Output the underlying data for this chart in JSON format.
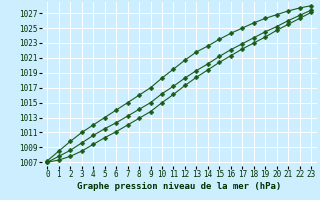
{
  "title": "Graphe pression niveau de la mer (hPa)",
  "background_color": "#cceeff",
  "grid_color": "#ffffff",
  "line_color": "#1a5c1a",
  "x_values": [
    0,
    1,
    2,
    3,
    4,
    5,
    6,
    7,
    8,
    9,
    10,
    11,
    12,
    13,
    14,
    15,
    16,
    17,
    18,
    19,
    20,
    21,
    22,
    23
  ],
  "line1": [
    1007.0,
    1007.8,
    1008.6,
    1009.6,
    1010.6,
    1011.5,
    1012.3,
    1013.2,
    1014.1,
    1015.0,
    1016.2,
    1017.2,
    1018.3,
    1019.3,
    1020.2,
    1021.2,
    1022.1,
    1022.9,
    1023.7,
    1024.5,
    1025.2,
    1026.0,
    1026.7,
    1027.4
  ],
  "line2": [
    1007.2,
    1008.5,
    1009.8,
    1011.0,
    1012.0,
    1013.0,
    1014.0,
    1015.0,
    1016.0,
    1017.0,
    1018.3,
    1019.5,
    1020.7,
    1021.8,
    1022.6,
    1023.5,
    1024.3,
    1025.0,
    1025.7,
    1026.3,
    1026.8,
    1027.3,
    1027.7,
    1028.0
  ],
  "line3": [
    1007.0,
    1007.3,
    1007.8,
    1008.5,
    1009.4,
    1010.3,
    1011.1,
    1012.0,
    1012.9,
    1013.8,
    1015.0,
    1016.1,
    1017.3,
    1018.4,
    1019.4,
    1020.4,
    1021.3,
    1022.2,
    1023.0,
    1023.8,
    1024.7,
    1025.5,
    1026.3,
    1027.1
  ],
  "ylim": [
    1006.5,
    1028.5
  ],
  "yticks": [
    1007,
    1009,
    1011,
    1013,
    1015,
    1017,
    1019,
    1021,
    1023,
    1025,
    1027
  ],
  "xlim": [
    -0.5,
    23.5
  ],
  "xticks": [
    0,
    1,
    2,
    3,
    4,
    5,
    6,
    7,
    8,
    9,
    10,
    11,
    12,
    13,
    14,
    15,
    16,
    17,
    18,
    19,
    20,
    21,
    22,
    23
  ],
  "title_fontsize": 6.5,
  "tick_fontsize": 5.5,
  "marker": "D",
  "marker_size": 2.5,
  "linewidth": 0.8
}
